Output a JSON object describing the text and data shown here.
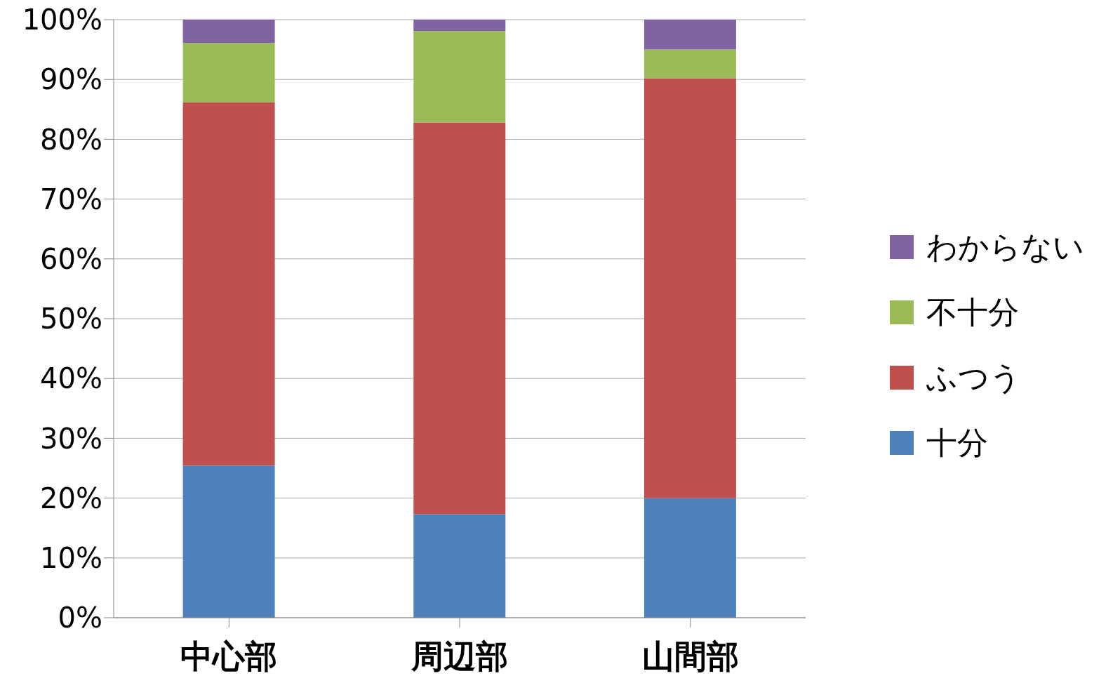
{
  "chart_data": {
    "type": "bar",
    "stacked": true,
    "categories": [
      "中心部",
      "周辺部",
      "山間部"
    ],
    "series": [
      {
        "name": "十分",
        "color": "#4f81bd",
        "values": [
          25.4,
          17.3,
          20.0
        ]
      },
      {
        "name": "ふつう",
        "color": "#c0504d",
        "values": [
          60.8,
          65.5,
          70.2
        ]
      },
      {
        "name": "不十分",
        "color": "#9bbb59",
        "values": [
          9.9,
          15.3,
          4.8
        ]
      },
      {
        "name": "わからない",
        "color": "#8064a2",
        "values": [
          3.9,
          1.9,
          5.0
        ]
      }
    ],
    "ylim": [
      0,
      100
    ],
    "yticks": [
      {
        "value": 0,
        "label": "0%"
      },
      {
        "value": 10,
        "label": "10%"
      },
      {
        "value": 20,
        "label": "20%"
      },
      {
        "value": 30,
        "label": "30%"
      },
      {
        "value": 40,
        "label": "40%"
      },
      {
        "value": 50,
        "label": "50%"
      },
      {
        "value": 60,
        "label": "60%"
      },
      {
        "value": 70,
        "label": "70%"
      },
      {
        "value": 80,
        "label": "80%"
      },
      {
        "value": 90,
        "label": "90%"
      },
      {
        "value": 100,
        "label": "100%"
      }
    ],
    "grid": "y",
    "legend": "right"
  }
}
